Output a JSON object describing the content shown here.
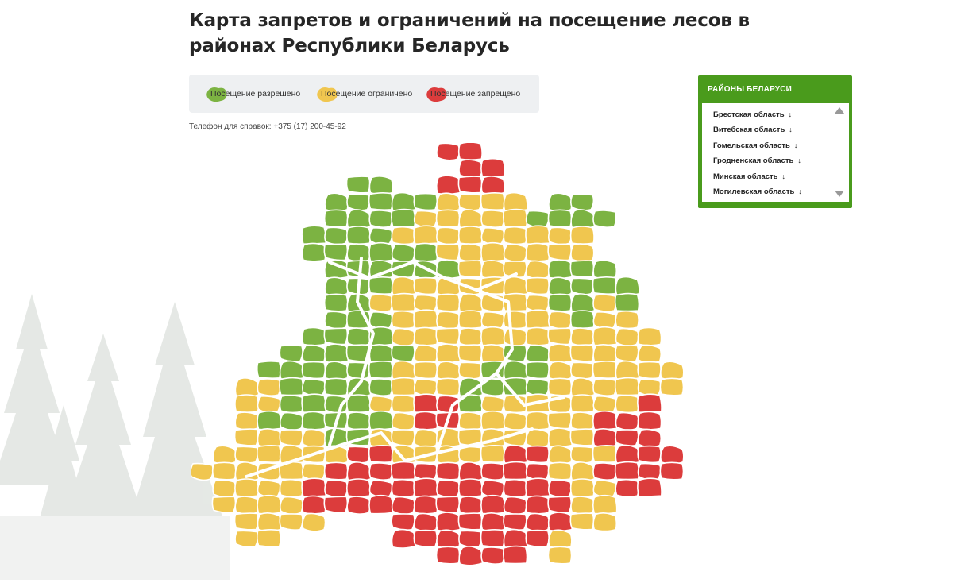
{
  "title": "Карта запретов и ограничений на посещение лесов в районах Республики Беларусь",
  "legend": {
    "allowed": "Посещение разрешено",
    "restricted": "Посещение ограничено",
    "prohibited": "Посещение запрещено"
  },
  "phone_label": "Телефон для справок: +375 (17) 200-45-92",
  "colors": {
    "allowed": "#7cb342",
    "restricted": "#f0c64f",
    "prohibited": "#dc3c3c",
    "panel_green": "#4a9b1c"
  },
  "panel": {
    "title": "РАЙОНЫ БЕЛАРУСИ",
    "regions": [
      "Брестская область",
      "Витебская область",
      "Гомельская область",
      "Гродненская область",
      "Минская область",
      "Могилевская область"
    ],
    "arrow": "↓"
  },
  "map_grid": [
    "...........RR.........",
    "............RR........",
    ".......GG..RRR........",
    "......GGGGGYYYY.GG....",
    "......GGGGYYYYYGGGG...",
    ".....GGGGYYYYYYYYY....",
    ".....GGGGGGYYYYYYY....",
    "......GGGGGGYYYYGGG...",
    "......GGGYYYYYYYGGGG..",
    "......GGYYYYYYYYGGYG..",
    "......GGGYYYYYYYYGYY..",
    ".....GGGGYYYYYYYYYYYY.",
    "....GGGGGGYYYYGGYYYYY.",
    "...GGGGGGYYYYGGGYYYYYY",
    "..YYGGGGGYYYGGGGYYYYYY",
    "..YYGGGGYYRRGYYYYYYYR.",
    "..YGGGGGGYRRYYYYYYRRR.",
    "..YYYYGGYYYYYYYYYYRRR.",
    ".YYYYYYRRYYYYYRRYYYRRR",
    "YYYYYYRRRRRRRRRRYYRRRR",
    ".YYYYRRRRRRRRRRRRYYRR.",
    ".YYYYRRRRRRRRRRRRYY...",
    "..YYYY...RRRRRRRRYY...",
    "..YY.....RRRRRRRY.....",
    "...........RRRR.Y....."
  ]
}
